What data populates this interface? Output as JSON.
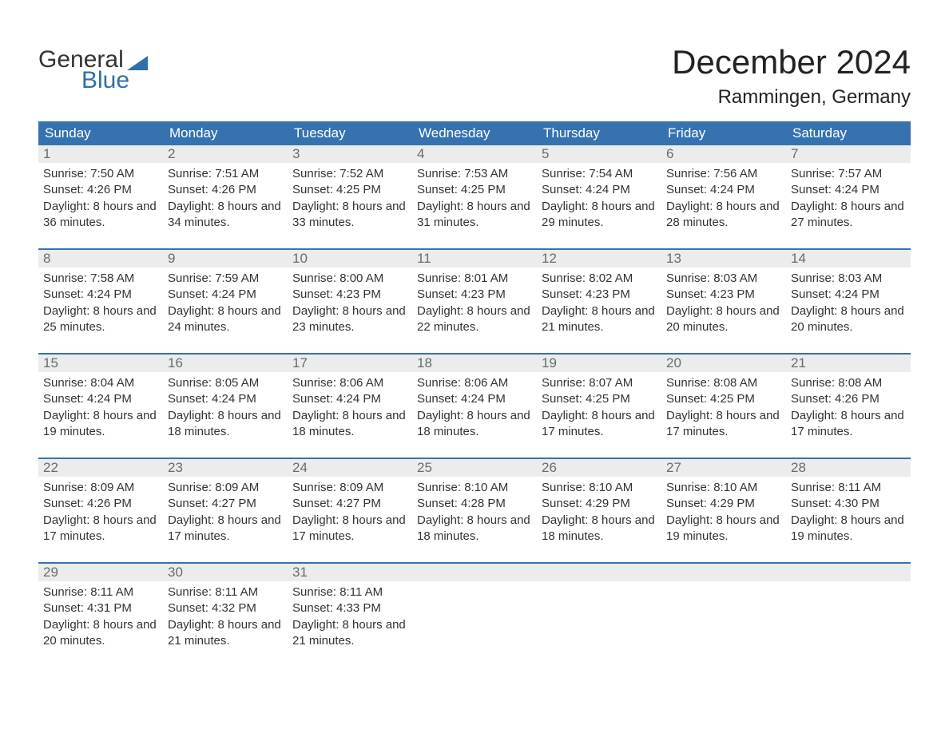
{
  "logo": {
    "word1": "General",
    "word2": "Blue"
  },
  "title": "December 2024",
  "location": "Rammingen, Germany",
  "colors": {
    "brand_blue": "#3672b0",
    "logo_blue": "#2f6fab",
    "header_text": "#ffffff",
    "date_bg": "#ececec",
    "date_text": "#6b6b6b",
    "body_text": "#333333",
    "page_bg": "#ffffff"
  },
  "day_headers": [
    "Sunday",
    "Monday",
    "Tuesday",
    "Wednesday",
    "Thursday",
    "Friday",
    "Saturday"
  ],
  "weeks": [
    [
      {
        "n": "1",
        "sr": "7:50 AM",
        "ss": "4:26 PM",
        "dl": "8 hours and 36 minutes."
      },
      {
        "n": "2",
        "sr": "7:51 AM",
        "ss": "4:26 PM",
        "dl": "8 hours and 34 minutes."
      },
      {
        "n": "3",
        "sr": "7:52 AM",
        "ss": "4:25 PM",
        "dl": "8 hours and 33 minutes."
      },
      {
        "n": "4",
        "sr": "7:53 AM",
        "ss": "4:25 PM",
        "dl": "8 hours and 31 minutes."
      },
      {
        "n": "5",
        "sr": "7:54 AM",
        "ss": "4:24 PM",
        "dl": "8 hours and 29 minutes."
      },
      {
        "n": "6",
        "sr": "7:56 AM",
        "ss": "4:24 PM",
        "dl": "8 hours and 28 minutes."
      },
      {
        "n": "7",
        "sr": "7:57 AM",
        "ss": "4:24 PM",
        "dl": "8 hours and 27 minutes."
      }
    ],
    [
      {
        "n": "8",
        "sr": "7:58 AM",
        "ss": "4:24 PM",
        "dl": "8 hours and 25 minutes."
      },
      {
        "n": "9",
        "sr": "7:59 AM",
        "ss": "4:24 PM",
        "dl": "8 hours and 24 minutes."
      },
      {
        "n": "10",
        "sr": "8:00 AM",
        "ss": "4:23 PM",
        "dl": "8 hours and 23 minutes."
      },
      {
        "n": "11",
        "sr": "8:01 AM",
        "ss": "4:23 PM",
        "dl": "8 hours and 22 minutes."
      },
      {
        "n": "12",
        "sr": "8:02 AM",
        "ss": "4:23 PM",
        "dl": "8 hours and 21 minutes."
      },
      {
        "n": "13",
        "sr": "8:03 AM",
        "ss": "4:23 PM",
        "dl": "8 hours and 20 minutes."
      },
      {
        "n": "14",
        "sr": "8:03 AM",
        "ss": "4:24 PM",
        "dl": "8 hours and 20 minutes."
      }
    ],
    [
      {
        "n": "15",
        "sr": "8:04 AM",
        "ss": "4:24 PM",
        "dl": "8 hours and 19 minutes."
      },
      {
        "n": "16",
        "sr": "8:05 AM",
        "ss": "4:24 PM",
        "dl": "8 hours and 18 minutes."
      },
      {
        "n": "17",
        "sr": "8:06 AM",
        "ss": "4:24 PM",
        "dl": "8 hours and 18 minutes."
      },
      {
        "n": "18",
        "sr": "8:06 AM",
        "ss": "4:24 PM",
        "dl": "8 hours and 18 minutes."
      },
      {
        "n": "19",
        "sr": "8:07 AM",
        "ss": "4:25 PM",
        "dl": "8 hours and 17 minutes."
      },
      {
        "n": "20",
        "sr": "8:08 AM",
        "ss": "4:25 PM",
        "dl": "8 hours and 17 minutes."
      },
      {
        "n": "21",
        "sr": "8:08 AM",
        "ss": "4:26 PM",
        "dl": "8 hours and 17 minutes."
      }
    ],
    [
      {
        "n": "22",
        "sr": "8:09 AM",
        "ss": "4:26 PM",
        "dl": "8 hours and 17 minutes."
      },
      {
        "n": "23",
        "sr": "8:09 AM",
        "ss": "4:27 PM",
        "dl": "8 hours and 17 minutes."
      },
      {
        "n": "24",
        "sr": "8:09 AM",
        "ss": "4:27 PM",
        "dl": "8 hours and 17 minutes."
      },
      {
        "n": "25",
        "sr": "8:10 AM",
        "ss": "4:28 PM",
        "dl": "8 hours and 18 minutes."
      },
      {
        "n": "26",
        "sr": "8:10 AM",
        "ss": "4:29 PM",
        "dl": "8 hours and 18 minutes."
      },
      {
        "n": "27",
        "sr": "8:10 AM",
        "ss": "4:29 PM",
        "dl": "8 hours and 19 minutes."
      },
      {
        "n": "28",
        "sr": "8:11 AM",
        "ss": "4:30 PM",
        "dl": "8 hours and 19 minutes."
      }
    ],
    [
      {
        "n": "29",
        "sr": "8:11 AM",
        "ss": "4:31 PM",
        "dl": "8 hours and 20 minutes."
      },
      {
        "n": "30",
        "sr": "8:11 AM",
        "ss": "4:32 PM",
        "dl": "8 hours and 21 minutes."
      },
      {
        "n": "31",
        "sr": "8:11 AM",
        "ss": "4:33 PM",
        "dl": "8 hours and 21 minutes."
      },
      null,
      null,
      null,
      null
    ]
  ],
  "labels": {
    "sunrise": "Sunrise:",
    "sunset": "Sunset:",
    "daylight": "Daylight:"
  }
}
